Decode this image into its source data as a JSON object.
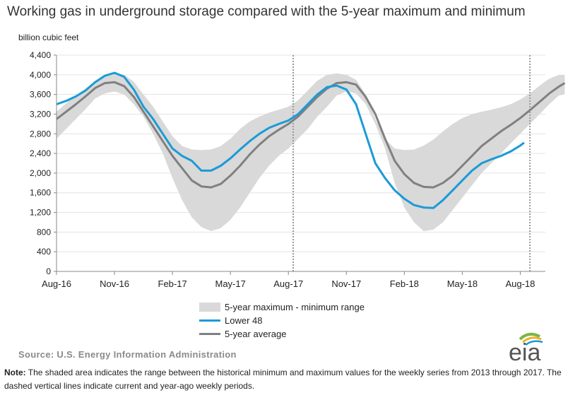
{
  "title": "Working gas in underground  storage compared with the 5-year maximum  and minimum",
  "unit_label": "billion cubic feet",
  "legend": {
    "band": "5-year maximum - minimum range",
    "lower48": "Lower 48",
    "avg": "5-year average"
  },
  "source": "Source:  U.S. Energy Information Administration",
  "note": {
    "label": "Note:",
    "text": " The shaded area indicates the range between the historical minimum and maximum values for the weekly series from 2013 through 2017. The dashed vertical lines indicate current and year-ago weekly periods."
  },
  "logo": {
    "text": "eia",
    "icon": "eia-logo-icon"
  },
  "colors": {
    "lower48": "#1a9bd7",
    "avg": "#808080",
    "band": "#d9d9d9",
    "dashed": "#999999"
  },
  "chart_data": {
    "type": "area",
    "ylim": [
      0,
      4400
    ],
    "xlim": [
      0,
      25.3
    ],
    "yticks": [
      0,
      400,
      800,
      1200,
      1600,
      2000,
      2400,
      2800,
      3200,
      3600,
      4000,
      4400
    ],
    "ytick_labels": [
      "0",
      "400",
      "800",
      "1,200",
      "1,600",
      "2,000",
      "2,400",
      "2,800",
      "3,200",
      "3,600",
      "4,000",
      "4,400"
    ],
    "xticks": [
      0,
      3,
      6,
      9,
      12,
      15,
      18,
      21,
      24
    ],
    "xtick_labels": [
      "Aug-16",
      "Nov-16",
      "Feb-17",
      "May-17",
      "Aug-17",
      "Nov-17",
      "Feb-18",
      "May-18",
      "Aug-18"
    ],
    "dashed_lines": [
      12.25,
      24.5
    ],
    "grid": "horizontal",
    "series": [
      {
        "name": "Lower 48",
        "x": [
          0,
          0.5,
          1,
          1.5,
          2,
          2.5,
          3,
          3.5,
          4,
          4.5,
          5,
          5.5,
          6,
          6.5,
          7,
          7.5,
          8,
          8.5,
          9,
          9.5,
          10,
          10.5,
          11,
          11.5,
          12,
          12.5,
          13,
          13.5,
          14,
          14.5,
          15,
          15.5,
          16,
          16.5,
          17,
          17.5,
          18,
          18.5,
          19,
          19.5,
          20,
          20.5,
          21,
          21.5,
          22,
          22.5,
          23,
          23.5,
          24,
          24.2
        ],
        "y": [
          3400,
          3470,
          3560,
          3680,
          3850,
          3980,
          4040,
          3960,
          3700,
          3350,
          3100,
          2800,
          2500,
          2350,
          2250,
          2050,
          2050,
          2150,
          2300,
          2480,
          2650,
          2800,
          2920,
          3000,
          3070,
          3200,
          3400,
          3600,
          3750,
          3780,
          3700,
          3400,
          2800,
          2200,
          1900,
          1650,
          1480,
          1350,
          1300,
          1290,
          1450,
          1650,
          1850,
          2050,
          2200,
          2280,
          2350,
          2440,
          2560,
          2620
        ]
      },
      {
        "name": "5-year average",
        "x": [
          0,
          0.5,
          1,
          1.5,
          2,
          2.5,
          3,
          3.5,
          4,
          4.5,
          5,
          5.5,
          6,
          6.5,
          7,
          7.5,
          8,
          8.5,
          9,
          9.5,
          10,
          10.5,
          11,
          11.5,
          12,
          12.5,
          13,
          13.5,
          14,
          14.5,
          15,
          15.5,
          16,
          16.5,
          17,
          17.5,
          18,
          18.5,
          19,
          19.5,
          20,
          20.5,
          21,
          21.5,
          22,
          22.5,
          23,
          23.5,
          24,
          24.5,
          25,
          25.5,
          26,
          26.3
        ],
        "y": [
          3100,
          3250,
          3400,
          3560,
          3730,
          3830,
          3850,
          3770,
          3550,
          3250,
          2950,
          2650,
          2350,
          2100,
          1850,
          1730,
          1710,
          1780,
          1950,
          2150,
          2380,
          2580,
          2750,
          2880,
          3000,
          3150,
          3350,
          3550,
          3720,
          3830,
          3850,
          3800,
          3550,
          3200,
          2700,
          2250,
          1980,
          1800,
          1720,
          1710,
          1800,
          1950,
          2150,
          2350,
          2550,
          2700,
          2850,
          2980,
          3120,
          3280,
          3450,
          3620,
          3760,
          3830
        ]
      },
      {
        "name": "5-year maximum - minimum range",
        "x": [
          0,
          0.5,
          1,
          1.5,
          2,
          2.5,
          3,
          3.5,
          4,
          4.5,
          5,
          5.5,
          6,
          6.5,
          7,
          7.5,
          8,
          8.5,
          9,
          9.5,
          10,
          10.5,
          11,
          11.5,
          12,
          12.5,
          13,
          13.5,
          14,
          14.5,
          15,
          15.5,
          16,
          16.5,
          17,
          17.5,
          18,
          18.5,
          19,
          19.5,
          20,
          20.5,
          21,
          21.5,
          22,
          22.5,
          23,
          23.5,
          24,
          24.5,
          25,
          25.5,
          26,
          26.3
        ],
        "max": [
          3250,
          3420,
          3580,
          3720,
          3880,
          3990,
          4040,
          4000,
          3860,
          3600,
          3350,
          3050,
          2750,
          2550,
          2480,
          2470,
          2480,
          2550,
          2700,
          2900,
          3050,
          3150,
          3230,
          3290,
          3350,
          3480,
          3680,
          3880,
          4000,
          4030,
          4000,
          3900,
          3600,
          3100,
          2700,
          2500,
          2470,
          2480,
          2560,
          2680,
          2850,
          3000,
          3120,
          3200,
          3250,
          3290,
          3340,
          3400,
          3500,
          3620,
          3780,
          3920,
          4000,
          4000
        ],
        "min": [
          2700,
          2900,
          3100,
          3300,
          3520,
          3620,
          3660,
          3600,
          3400,
          3150,
          2800,
          2400,
          1900,
          1450,
          1100,
          900,
          820,
          880,
          1050,
          1300,
          1600,
          1900,
          2150,
          2350,
          2500,
          2700,
          2900,
          3150,
          3350,
          3580,
          3660,
          3620,
          3400,
          3000,
          2500,
          1800,
          1300,
          1000,
          820,
          850,
          1000,
          1250,
          1500,
          1750,
          2000,
          2200,
          2400,
          2600,
          2800,
          3000,
          3200,
          3400,
          3580,
          3600
        ]
      }
    ]
  }
}
